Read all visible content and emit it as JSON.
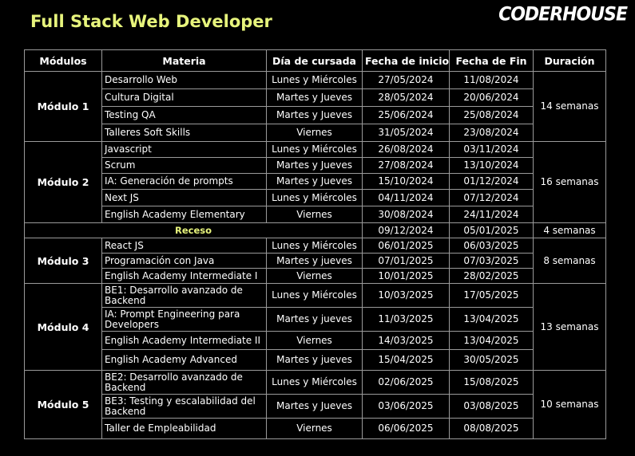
{
  "title": "Full Stack Web Developer",
  "logo": "CODERHOUSE",
  "colors": {
    "accent": "#e7f47c",
    "background": "#000000",
    "border": "#9a9a9a"
  },
  "headers": [
    "Módulos",
    "Materia",
    "Día de cursada",
    "Fecha de inicio",
    "Fecha de Fin",
    "Duración"
  ],
  "modules": [
    {
      "name": "Módulo 1",
      "duration": "14 semanas",
      "rows": [
        {
          "materia": "Desarrollo Web",
          "dia": "Lunes y Miércoles",
          "inicio": "27/05/2024",
          "fin": "11/08/2024"
        },
        {
          "materia": "Cultura Digital",
          "dia": "Martes y Jueves",
          "inicio": "28/05/2024",
          "fin": "20/06/2024"
        },
        {
          "materia": "Testing QA",
          "dia": "Martes y Jueves",
          "inicio": "25/06/2024",
          "fin": "25/08/2024"
        },
        {
          "materia": "Talleres Soft Skills",
          "dia": "Viernes",
          "inicio": "31/05/2024",
          "fin": "23/08/2024"
        }
      ]
    },
    {
      "name": "Módulo 2",
      "duration": "16 semanas",
      "rows": [
        {
          "materia": "Javascript",
          "dia": "Lunes y Miércoles",
          "inicio": "26/08/2024",
          "fin": "03/11/2024"
        },
        {
          "materia": "Scrum",
          "dia": "Martes y Jueves",
          "inicio": "27/08/2024",
          "fin": "13/10/2024"
        },
        {
          "materia": "IA: Generación de prompts",
          "dia": "Martes y Jueves",
          "inicio": "15/10/2024",
          "fin": "01/12/2024"
        },
        {
          "materia": "Next JS",
          "dia": "Lunes y Miércoles",
          "inicio": "04/11/2024",
          "fin": "07/12/2024"
        },
        {
          "materia": "English Academy Elementary",
          "dia": "Viernes",
          "inicio": "30/08/2024",
          "fin": "24/11/2024"
        }
      ]
    },
    {
      "recess": true,
      "label": "Receso",
      "inicio": "09/12/2024",
      "fin": "05/01/2025",
      "duration": "4 semanas"
    },
    {
      "name": "Módulo 3",
      "duration": "8 semanas",
      "rows": [
        {
          "materia": "React JS",
          "dia": "Lunes y Miércoles",
          "inicio": "06/01/2025",
          "fin": "06/03/2025"
        },
        {
          "materia": "Programación con Java",
          "dia": "Martes y jueves",
          "inicio": "07/01/2025",
          "fin": "07/03/2025"
        },
        {
          "materia": "English Academy Intermediate I",
          "dia": "Viernes",
          "inicio": "10/01/2025",
          "fin": "28/02/2025"
        }
      ]
    },
    {
      "name": "Módulo 4",
      "duration": "13 semanas",
      "rows": [
        {
          "materia": "BE1: Desarrollo avanzado de Backend",
          "dia": "Lunes y Miércoles",
          "inicio": "10/03/2025",
          "fin": "17/05/2025"
        },
        {
          "materia": "IA: Prompt Engineering para Developers",
          "dia": "Martes y jueves",
          "inicio": "11/03/2025",
          "fin": "13/04/2025"
        },
        {
          "materia": "English Academy Intermediate II",
          "dia": "Viernes",
          "inicio": "14/03/2025",
          "fin": "13/04/2025"
        },
        {
          "materia": "English Academy Advanced",
          "dia": "Martes y jueves",
          "inicio": "15/04/2025",
          "fin": "30/05/2025"
        }
      ]
    },
    {
      "name": "Módulo 5",
      "duration": "10 semanas",
      "rows": [
        {
          "materia": "BE2: Desarrollo avanzado de Backend",
          "dia": "Lunes y Miércoles",
          "inicio": "02/06/2025",
          "fin": "15/08/2025"
        },
        {
          "materia": "BE3: Testing y escalabilidad del Backend",
          "dia": "Martes y Jueves",
          "inicio": "03/06/2025",
          "fin": "03/08/2025"
        },
        {
          "materia": "Taller de Empleabilidad",
          "dia": "Viernes",
          "inicio": "06/06/2025",
          "fin": "08/08/2025"
        }
      ]
    }
  ]
}
